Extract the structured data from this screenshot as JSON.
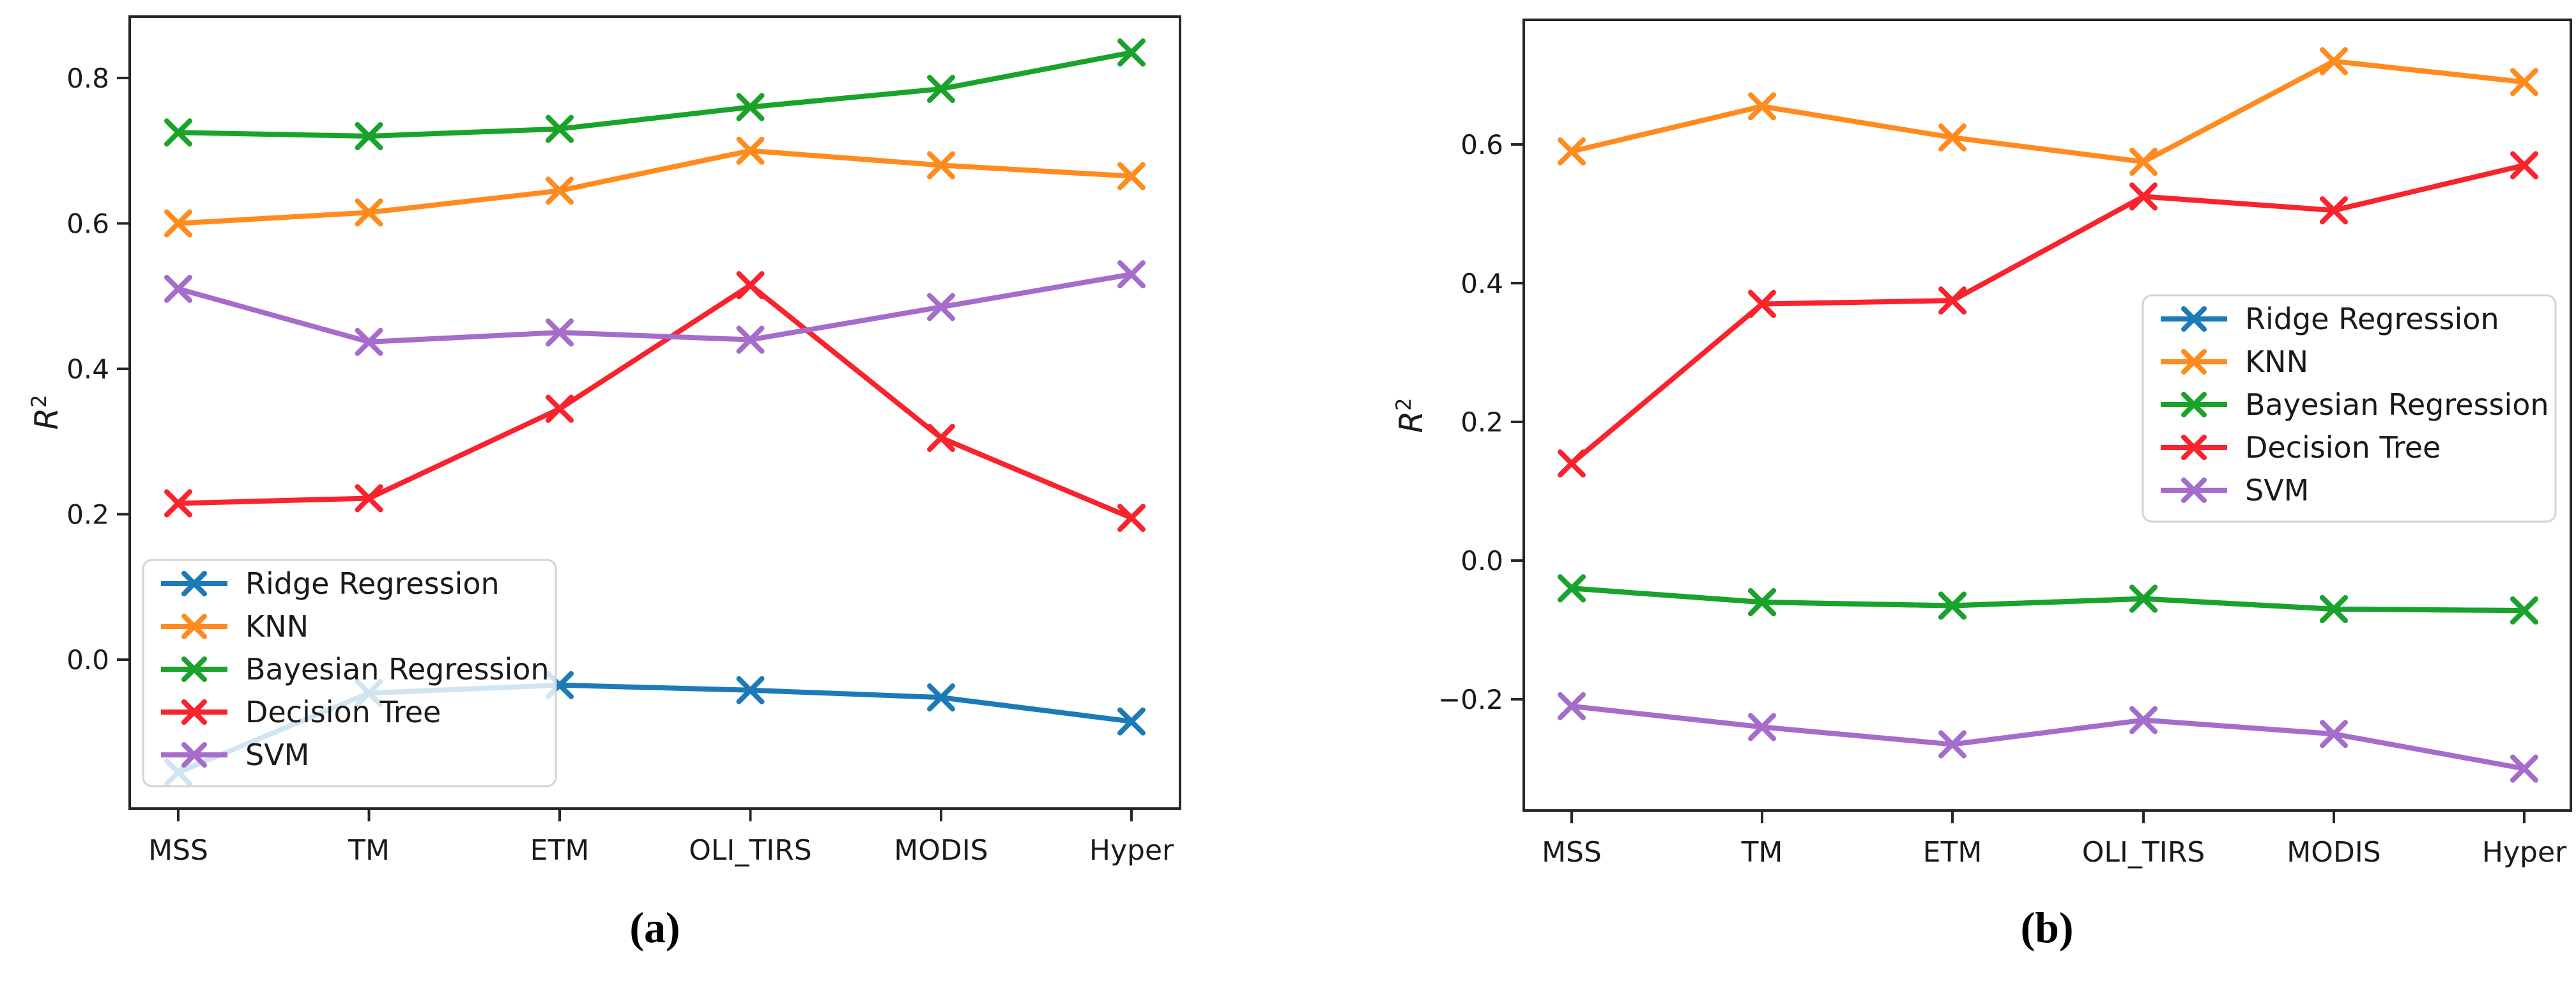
{
  "figure": {
    "background": "#ffffff",
    "ylabel_base": "R",
    "ylabel_sup": "2",
    "captions": {
      "a": "(a)",
      "b": "(b)"
    }
  },
  "chart_data": [
    {
      "id": "a",
      "type": "line",
      "caption": "(a)",
      "ylabel": "R^2",
      "categories": [
        "MSS",
        "TM",
        "ETM",
        "OLI_TIRS",
        "MODIS",
        "Hyper"
      ],
      "ylim": [
        -0.205,
        0.885
      ],
      "grid": false,
      "legend_position": "lower-left",
      "yticks": [
        {
          "v": 0.8,
          "label": "0.8"
        },
        {
          "v": 0.6,
          "label": "0.6"
        },
        {
          "v": 0.4,
          "label": "0.4"
        },
        {
          "v": 0.2,
          "label": "0.2"
        },
        {
          "v": 0.0,
          "label": "0.0"
        }
      ],
      "series": [
        {
          "name": "Ridge Regression",
          "color": "#1d7ab8",
          "marker": "x",
          "values": [
            -0.155,
            -0.046,
            -0.035,
            -0.042,
            -0.052,
            -0.085
          ]
        },
        {
          "name": "KNN",
          "color": "#ff8b1f",
          "marker": "x",
          "values": [
            0.6,
            0.615,
            0.645,
            0.7,
            0.68,
            0.665
          ]
        },
        {
          "name": "Bayesian Regression",
          "color": "#19a32a",
          "marker": "x",
          "values": [
            0.725,
            0.72,
            0.73,
            0.76,
            0.785,
            0.835
          ]
        },
        {
          "name": "Decision Tree",
          "color": "#f8232c",
          "marker": "x",
          "values": [
            0.215,
            0.222,
            0.345,
            0.515,
            0.305,
            0.195
          ]
        },
        {
          "name": "SVM",
          "color": "#a56ccb",
          "marker": "x",
          "values": [
            0.51,
            0.437,
            0.45,
            0.44,
            0.485,
            0.53
          ]
        }
      ]
    },
    {
      "id": "b",
      "type": "line",
      "caption": "(b)",
      "ylabel": "R^2",
      "categories": [
        "MSS",
        "TM",
        "ETM",
        "OLI_TIRS",
        "MODIS",
        "Hyper"
      ],
      "ylim": [
        -0.36,
        0.78
      ],
      "grid": false,
      "legend_position": "center-right",
      "yticks": [
        {
          "v": 0.6,
          "label": "0.6"
        },
        {
          "v": 0.4,
          "label": "0.4"
        },
        {
          "v": 0.2,
          "label": "0.2"
        },
        {
          "v": 0.0,
          "label": "0.0"
        },
        {
          "v": -0.2,
          "label": "−0.2"
        }
      ],
      "series": [
        {
          "name": "Ridge Regression",
          "color": "#1d7ab8",
          "marker": "x",
          "values": [
            -0.04,
            -0.06,
            -0.065,
            -0.055,
            -0.07,
            -0.072
          ]
        },
        {
          "name": "KNN",
          "color": "#ff8b1f",
          "marker": "x",
          "values": [
            0.59,
            0.655,
            0.61,
            0.575,
            0.72,
            0.69
          ]
        },
        {
          "name": "Bayesian Regression",
          "color": "#19a32a",
          "marker": "x",
          "values": [
            -0.04,
            -0.06,
            -0.065,
            -0.055,
            -0.07,
            -0.072
          ]
        },
        {
          "name": "Decision Tree",
          "color": "#f8232c",
          "marker": "x",
          "values": [
            0.14,
            0.37,
            0.375,
            0.525,
            0.505,
            0.57
          ]
        },
        {
          "name": "SVM",
          "color": "#a56ccb",
          "marker": "x",
          "values": [
            -0.21,
            -0.24,
            -0.265,
            -0.23,
            -0.25,
            -0.3
          ]
        }
      ]
    }
  ]
}
